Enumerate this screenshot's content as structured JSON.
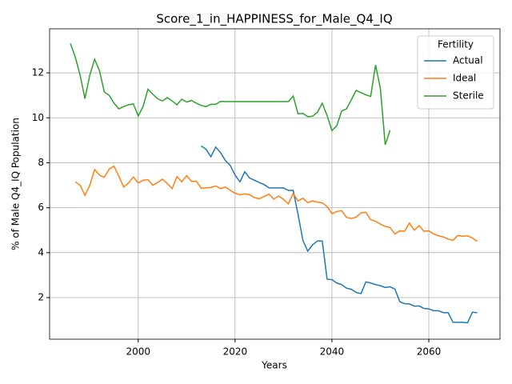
{
  "chart_data": {
    "type": "line",
    "title": "Score_1_in_HAPPINESS_for_Male_Q4_IQ",
    "x_label": "Years",
    "y_label": "% of Male Q4_IQ Population",
    "legend_title": "Fertility",
    "legend": "upper right",
    "grid": true,
    "xlim": [
      1981.7,
      2074.7
    ],
    "xticks": [
      2000,
      2020,
      2040,
      2060
    ],
    "ylim": [
      0.15,
      13.96
    ],
    "yticks": [
      2,
      4,
      6,
      8,
      10,
      12
    ],
    "x": [
      1986,
      1987,
      1988,
      1989,
      1990,
      1991,
      1992,
      1993,
      1994,
      1995,
      1996,
      1997,
      1998,
      1999,
      2000,
      2001,
      2002,
      2003,
      2004,
      2005,
      2006,
      2007,
      2008,
      2009,
      2010,
      2011,
      2012,
      2013,
      2014,
      2015,
      2016,
      2017,
      2018,
      2019,
      2020,
      2021,
      2022,
      2023,
      2024,
      2025,
      2026,
      2027,
      2028,
      2029,
      2030,
      2031,
      2032,
      2033,
      2034,
      2035,
      2036,
      2037,
      2038,
      2039,
      2040,
      2041,
      2042,
      2043,
      2044,
      2045,
      2046,
      2047,
      2048,
      2049,
      2050,
      2051,
      2052,
      2053,
      2054,
      2055,
      2056,
      2057,
      2058,
      2059,
      2060,
      2061,
      2062,
      2063,
      2064,
      2065,
      2066,
      2067,
      2068,
      2069,
      2070
    ],
    "series": [
      {
        "name": "Actual",
        "color": "#1f77b4",
        "values": [
          null,
          null,
          null,
          null,
          null,
          null,
          null,
          null,
          null,
          null,
          null,
          null,
          null,
          null,
          null,
          null,
          null,
          null,
          null,
          null,
          null,
          null,
          null,
          null,
          null,
          null,
          null,
          8.75,
          8.6,
          8.27,
          8.7,
          8.45,
          8.1,
          7.88,
          7.45,
          7.15,
          7.6,
          7.32,
          7.22,
          7.12,
          7.03,
          6.88,
          6.88,
          6.88,
          6.88,
          6.77,
          6.77,
          5.7,
          4.55,
          4.07,
          4.35,
          4.52,
          4.52,
          2.82,
          2.8,
          2.65,
          2.58,
          2.42,
          2.37,
          2.23,
          2.18,
          2.7,
          2.65,
          2.58,
          2.53,
          2.45,
          2.48,
          2.38,
          1.82,
          1.73,
          1.72,
          1.62,
          1.63,
          1.52,
          1.5,
          1.42,
          1.42,
          1.33,
          1.33,
          0.9,
          0.9,
          0.9,
          0.88,
          1.35,
          1.33
        ]
      },
      {
        "name": "Ideal",
        "color": "#ff7f0e",
        "values": [
          null,
          7.15,
          7.0,
          6.55,
          7.0,
          7.7,
          7.45,
          7.35,
          7.72,
          7.85,
          7.4,
          6.92,
          7.1,
          7.37,
          7.1,
          7.22,
          7.25,
          7.0,
          7.12,
          7.27,
          7.08,
          6.85,
          7.38,
          7.15,
          7.43,
          7.17,
          7.18,
          6.87,
          6.88,
          6.9,
          6.97,
          6.85,
          6.92,
          6.77,
          6.65,
          6.57,
          6.62,
          6.58,
          6.45,
          6.4,
          6.5,
          6.6,
          6.38,
          6.52,
          6.37,
          6.17,
          6.63,
          6.3,
          6.42,
          6.23,
          6.3,
          6.25,
          6.22,
          6.05,
          5.73,
          5.83,
          5.87,
          5.57,
          5.52,
          5.58,
          5.77,
          5.8,
          5.47,
          5.4,
          5.27,
          5.17,
          5.12,
          4.83,
          4.97,
          4.95,
          5.32,
          5.0,
          5.2,
          4.95,
          4.97,
          4.83,
          4.75,
          4.7,
          4.6,
          4.55,
          4.77,
          4.73,
          4.75,
          4.65,
          4.5
        ]
      },
      {
        "name": "Sterile",
        "color": "#2ca02c",
        "values": [
          13.3,
          12.7,
          11.9,
          10.85,
          11.9,
          12.6,
          12.1,
          11.15,
          11.0,
          10.65,
          10.4,
          10.5,
          10.58,
          10.62,
          10.08,
          10.5,
          11.27,
          11.05,
          10.85,
          10.75,
          10.9,
          10.75,
          10.58,
          10.83,
          10.7,
          10.77,
          10.65,
          10.55,
          10.5,
          10.6,
          10.6,
          10.73,
          10.72,
          10.72,
          10.72,
          10.72,
          10.72,
          10.72,
          10.72,
          10.72,
          10.72,
          10.72,
          10.72,
          10.72,
          10.72,
          10.72,
          10.97,
          10.18,
          10.2,
          10.05,
          10.07,
          10.25,
          10.65,
          10.1,
          9.43,
          9.65,
          10.3,
          10.4,
          10.8,
          11.22,
          11.12,
          11.02,
          10.95,
          12.35,
          11.3,
          8.8,
          9.45,
          null,
          null,
          null,
          null,
          null,
          null,
          null,
          null,
          null,
          null,
          null,
          null,
          null,
          null,
          null,
          null,
          null,
          null
        ]
      }
    ]
  }
}
